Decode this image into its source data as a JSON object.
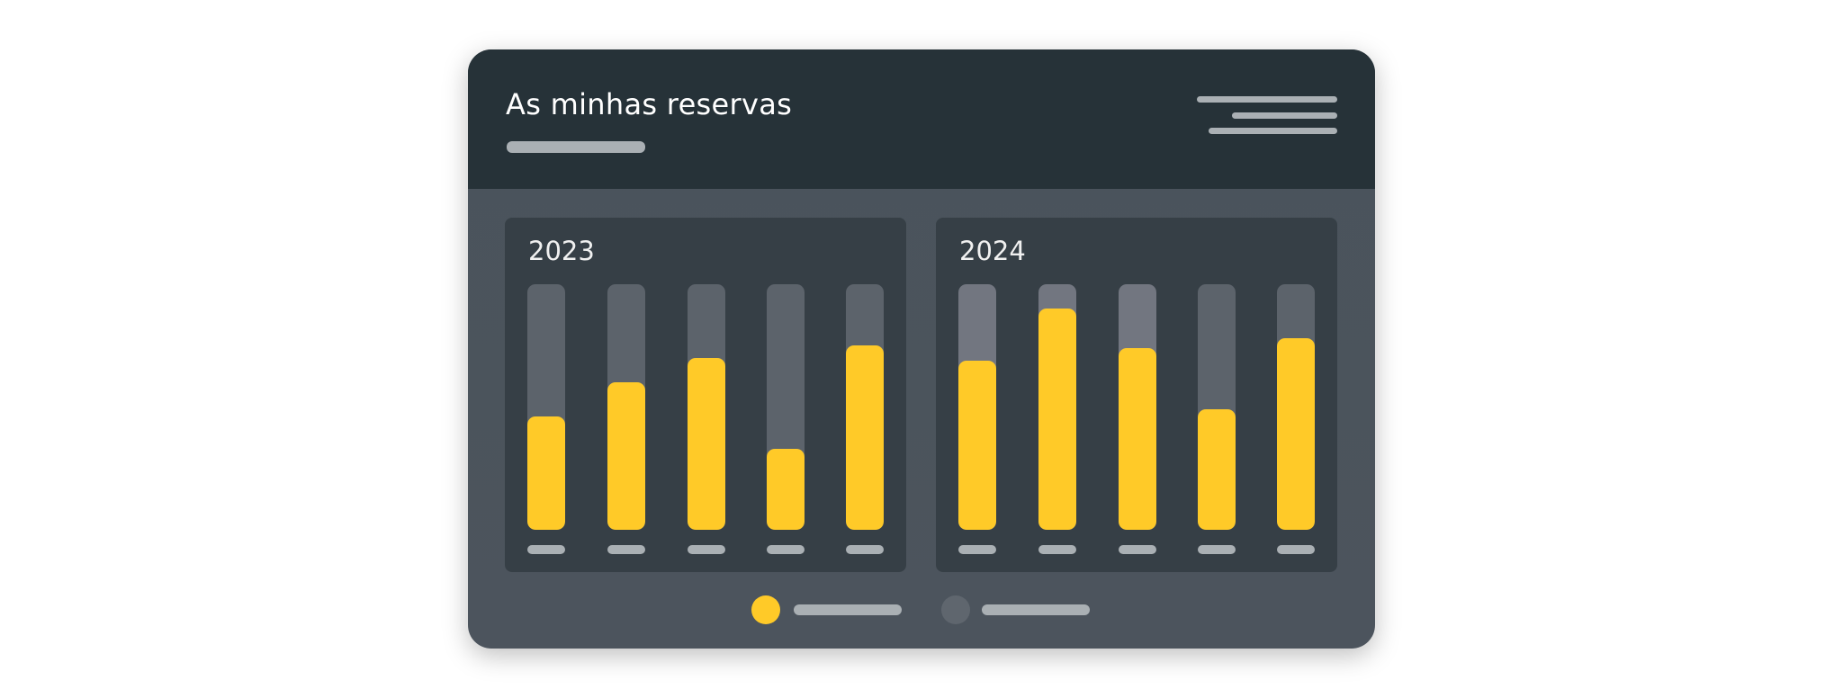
{
  "header": {
    "title": "As minhas reservas"
  },
  "colors": {
    "accent": "#ffca28",
    "header_bg": "#263238",
    "body_bg": "#4a535b",
    "panel_bg": "#363f46",
    "placeholder": "#aab0b4"
  },
  "chart_data": [
    {
      "type": "bar",
      "title": "2023",
      "values": [
        0.46,
        0.6,
        0.7,
        0.33,
        0.75
      ],
      "ylim": [
        0,
        1
      ],
      "track_color": "#5c636b"
    },
    {
      "type": "bar",
      "title": "2024",
      "values": [
        0.69,
        0.9,
        0.74,
        0.49,
        0.78
      ],
      "ylim": [
        0,
        1
      ],
      "track_colors": [
        "#727680",
        "#727680",
        "#727680",
        "#5c636b",
        "#5c636b"
      ]
    }
  ],
  "legend": [
    {
      "color": "#ffca28"
    },
    {
      "color": "#5f666e"
    }
  ]
}
